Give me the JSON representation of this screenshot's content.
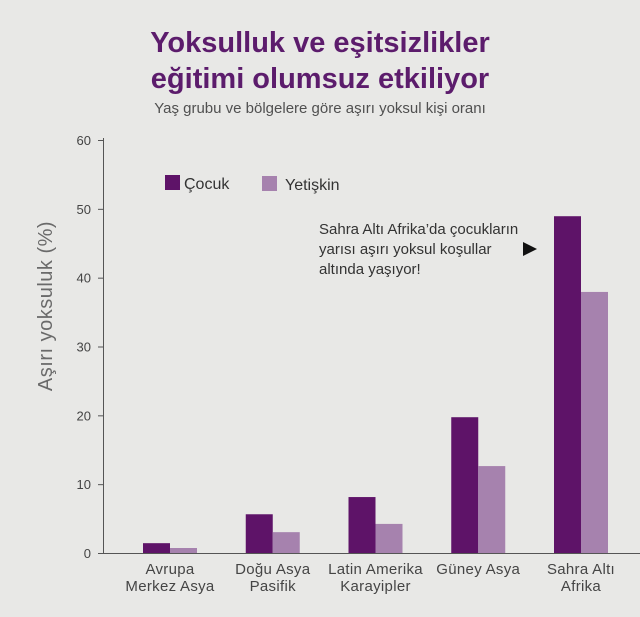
{
  "theme": {
    "background": "#e8e8e6",
    "title_color": "#5c1c6c"
  },
  "chart_data": {
    "type": "bar",
    "title": "Yoksulluk ve eşitsizlikler\neğitimi olumsuz etkiliyor",
    "subtitle": "Yaş grubu ve bölgelere göre aşırı yoksul kişi oranı",
    "xlabel": "",
    "ylabel": "Aşırı yoksuluk (%)",
    "ylim": [
      0,
      60
    ],
    "yticks": [
      0,
      10,
      20,
      30,
      40,
      50,
      60
    ],
    "grid": false,
    "legend": "top-left",
    "categories": [
      "Avrupa\nMerkez Asya",
      "Doğu Asya\nPasifik",
      "Latin Amerika\nKarayipler",
      "Güney Asya",
      "Sahra Altı\nAfrika"
    ],
    "series": [
      {
        "name": "Çocuk",
        "color": "#5e1368",
        "values": [
          1.5,
          5.7,
          8.2,
          19.8,
          49.0
        ]
      },
      {
        "name": "Yetişkin",
        "color": "#a682ae",
        "values": [
          0.8,
          3.1,
          4.3,
          12.7,
          38.0
        ]
      }
    ],
    "annotations": [
      {
        "text": "Sahra Altı Afrika’da çocukların\nyarısı aşırı yoksul koşullar\naltında yaşıyor!"
      }
    ]
  }
}
